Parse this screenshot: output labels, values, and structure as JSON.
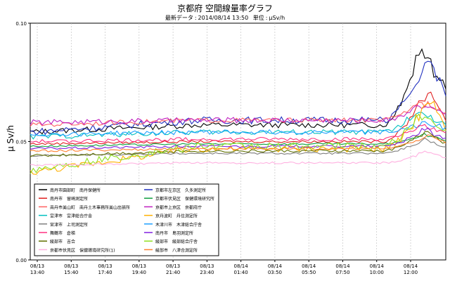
{
  "chart_data": {
    "type": "line",
    "title": "京都府 空間線量率グラフ",
    "subtitle_label": "最新データ",
    "subtitle_timestamp": "2014/08/14 13:50",
    "unit_label": "単位",
    "unit": "μSv/h",
    "ylabel": "μ Sv/h",
    "ylim": [
      0.0,
      0.1
    ],
    "yticks": [
      "0.00",
      "0.05",
      "0.10"
    ],
    "grid": "vertical dashed",
    "legend_position": "bottom-left inside",
    "x_ticks": [
      {
        "date": "08/13",
        "time": "13:40"
      },
      {
        "date": "08/13",
        "time": "15:40"
      },
      {
        "date": "08/13",
        "time": "17:40"
      },
      {
        "date": "08/13",
        "time": "19:40"
      },
      {
        "date": "08/13",
        "time": "21:40"
      },
      {
        "date": "08/13",
        "time": "23:40"
      },
      {
        "date": "08/14",
        "time": "01:40"
      },
      {
        "date": "08/14",
        "time": "03:50"
      },
      {
        "date": "08/14",
        "time": "05:50"
      },
      {
        "date": "08/14",
        "time": "07:50"
      },
      {
        "date": "08/14",
        "time": "10:00"
      },
      {
        "date": "08/14",
        "time": "12:00"
      }
    ],
    "series": [
      {
        "name": "南丹市園部町　南丹保健所",
        "color": "#000000",
        "base": 0.054,
        "trend": 0.003,
        "noise": 0.0012,
        "peak": 0.089,
        "peak_at": 0.94
      },
      {
        "name": "京都市左京区　久多測定所",
        "color": "#1f2fbf",
        "base": 0.054,
        "trend": 0.005,
        "noise": 0.0015,
        "peak": 0.08,
        "peak_at": 0.96
      },
      {
        "name": "南丹市　留崎測定所",
        "color": "#e02020",
        "base": 0.049,
        "trend": 0.001,
        "noise": 0.0005,
        "peak": 0.072,
        "peak_at": 0.96
      },
      {
        "name": "京都市伏見区　保健環境研究所",
        "color": "#10a040",
        "base": 0.048,
        "trend": 0.001,
        "noise": 0.0004,
        "peak": 0.052,
        "peak_at": 0.95
      },
      {
        "name": "南丹市美山町　南丹土木事務所美山出張所",
        "color": "#ff6060",
        "base": 0.057,
        "trend": 0.002,
        "noise": 0.001,
        "peak": 0.065,
        "peak_at": 0.93
      },
      {
        "name": "京都市上京区　京都府庁",
        "color": "#c020c0",
        "base": 0.058,
        "trend": 0.001,
        "noise": 0.0012,
        "peak": 0.064,
        "peak_at": 0.93
      },
      {
        "name": "宮津市　宮津総合庁舎",
        "color": "#00c0c0",
        "base": 0.052,
        "trend": 0.002,
        "noise": 0.0011,
        "peak": 0.06,
        "peak_at": 0.93
      },
      {
        "name": "京丹波町　丹住測定所",
        "color": "#ffb000",
        "base": 0.037,
        "trend": 0.01,
        "noise": 0.0014,
        "peak": 0.058,
        "peak_at": 0.96
      },
      {
        "name": "宮津市　上司測定所",
        "color": "#808080",
        "base": 0.044,
        "trend": 0.001,
        "noise": 0.0004,
        "peak": 0.05,
        "peak_at": 0.95
      },
      {
        "name": "木津川市　木津総合庁舎",
        "color": "#20a0ff",
        "base": 0.053,
        "trend": 0.001,
        "noise": 0.001,
        "peak": 0.057,
        "peak_at": 0.95
      },
      {
        "name": "舞鶴市　倉梯",
        "color": "#ff3080",
        "base": 0.05,
        "trend": 0.001,
        "noise": 0.0008,
        "peak": 0.056,
        "peak_at": 0.95
      },
      {
        "name": "南丹市　島羽測定所",
        "color": "#8020e0",
        "base": 0.047,
        "trend": 0.001,
        "noise": 0.0005,
        "peak": 0.054,
        "peak_at": 0.95
      },
      {
        "name": "綾部市　吉合",
        "color": "#607000",
        "base": 0.044,
        "trend": 0.002,
        "noise": 0.0006,
        "peak": 0.052,
        "peak_at": 0.95
      },
      {
        "name": "綾部市　綾部総合庁舎",
        "color": "#90e020",
        "base": 0.038,
        "trend": 0.01,
        "noise": 0.0016,
        "peak": 0.052,
        "peak_at": 0.94
      },
      {
        "name": "京都市伏見区　保健環境研究所(1)",
        "color": "#ffb0e0",
        "base": 0.04,
        "trend": 0.001,
        "noise": 0.0004,
        "peak": 0.045,
        "peak_at": 0.95
      },
      {
        "name": "綾部市　八津合測定所",
        "color": "#ff8030",
        "base": 0.046,
        "trend": 0.001,
        "noise": 0.0005,
        "peak": 0.052,
        "peak_at": 0.96
      }
    ]
  }
}
